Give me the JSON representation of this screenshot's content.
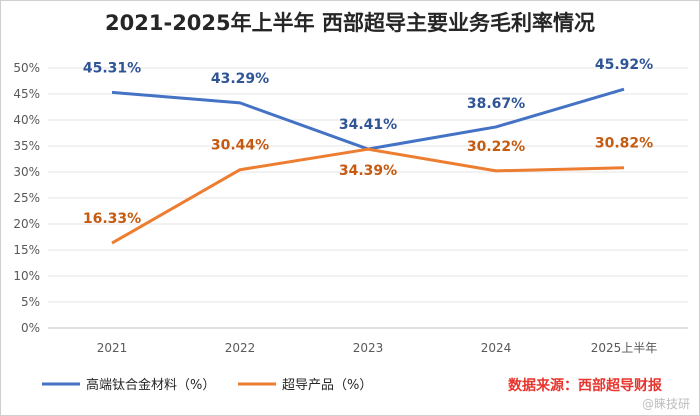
{
  "chart_data": {
    "type": "line",
    "title": "2021-2025年上半年 西部超导主要业务毛利率情况",
    "categories": [
      "2021",
      "2022",
      "2023",
      "2024",
      "2025上半年"
    ],
    "y_ticks": [
      "0%",
      "5%",
      "10%",
      "15%",
      "20%",
      "25%",
      "30%",
      "35%",
      "40%",
      "45%",
      "50%"
    ],
    "ylim": [
      0,
      50
    ],
    "grid": true,
    "legend_position": "bottom-left",
    "series": [
      {
        "name": "高端钛合金材料（%）",
        "color": "#4472c4",
        "label_color": "#2f5597",
        "values": [
          45.31,
          43.29,
          34.41,
          38.67,
          45.92
        ],
        "labels": [
          "45.31%",
          "43.29%",
          "34.41%",
          "38.67%",
          "45.92%"
        ]
      },
      {
        "name": "超导产品（%）",
        "color": "#ed7d31",
        "label_color": "#c55a11",
        "values": [
          16.33,
          30.44,
          34.39,
          30.22,
          30.82
        ],
        "labels": [
          "16.33%",
          "30.44%",
          "34.39%",
          "30.22%",
          "30.82%"
        ]
      }
    ],
    "source_note": "数据来源：西部超导财报",
    "watermark": "@睐技研"
  }
}
